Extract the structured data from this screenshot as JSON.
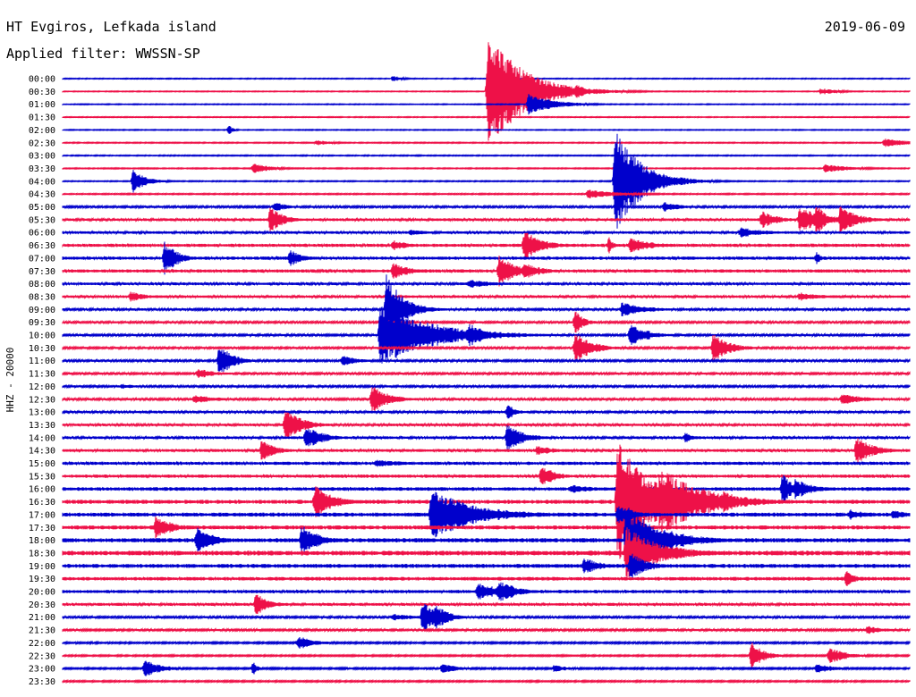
{
  "header": {
    "title": "HT Evgiros, Lefkada island",
    "filter": "Applied filter: WWSSN-SP",
    "date": "2019-06-09"
  },
  "chart_data": {
    "type": "line",
    "title": "HT Evgiros, Lefkada island",
    "ylabel": "HHZ - 20000",
    "colors": [
      "#0000cc",
      "#ee1148"
    ],
    "row_labels": [
      "00:00",
      "00:30",
      "01:00",
      "01:30",
      "02:00",
      "02:30",
      "03:00",
      "03:30",
      "04:00",
      "04:30",
      "05:00",
      "05:30",
      "06:00",
      "06:30",
      "07:00",
      "07:30",
      "08:00",
      "08:30",
      "09:00",
      "09:30",
      "10:00",
      "10:30",
      "11:00",
      "11:30",
      "12:00",
      "12:30",
      "13:00",
      "13:30",
      "14:00",
      "14:30",
      "15:00",
      "15:30",
      "16:00",
      "16:30",
      "17:00",
      "17:30",
      "18:00",
      "18:30",
      "19:00",
      "19:30",
      "20:00",
      "20:30",
      "21:00",
      "21:30",
      "22:00",
      "22:30",
      "23:00",
      "23:30"
    ],
    "background_noise": [
      0.5,
      0.5,
      0.5,
      0.5,
      0.5,
      0.6,
      0.6,
      0.6,
      0.6,
      0.7,
      1.2,
      1.5,
      1.5,
      1.8,
      1.8,
      1.8,
      1.5,
      1.5,
      1.3,
      1.2,
      1.2,
      1.2,
      1.2,
      1.2,
      1.2,
      1.3,
      1.4,
      1.4,
      1.5,
      1.6,
      1.8,
      1.8,
      2.0,
      2.2,
      2.2,
      2.2,
      2.4,
      2.6,
      2.2,
      2.0,
      1.8,
      1.6,
      1.2,
      1.2,
      1.0,
      0.9,
      1.0,
      0.9
    ],
    "events": [
      {
        "row": 0,
        "x": 0.39,
        "amp": 4,
        "dur": 0.01
      },
      {
        "row": 1,
        "x": 0.502,
        "amp": 70,
        "dur": 0.04
      },
      {
        "row": 1,
        "x": 0.607,
        "amp": 10,
        "dur": 0.01
      },
      {
        "row": 1,
        "x": 0.895,
        "amp": 4,
        "dur": 0.02
      },
      {
        "row": 2,
        "x": 0.55,
        "amp": 12,
        "dur": 0.03
      },
      {
        "row": 4,
        "x": 0.196,
        "amp": 6,
        "dur": 0.005
      },
      {
        "row": 5,
        "x": 0.97,
        "amp": 5,
        "dur": 0.03
      },
      {
        "row": 5,
        "x": 0.3,
        "amp": 3,
        "dur": 0.02
      },
      {
        "row": 7,
        "x": 0.225,
        "amp": 6,
        "dur": 0.02
      },
      {
        "row": 7,
        "x": 0.9,
        "amp": 5,
        "dur": 0.03
      },
      {
        "row": 8,
        "x": 0.083,
        "amp": 14,
        "dur": 0.015
      },
      {
        "row": 8,
        "x": 0.652,
        "amp": 60,
        "dur": 0.03
      },
      {
        "row": 8,
        "x": 0.68,
        "amp": 12,
        "dur": 0.02
      },
      {
        "row": 9,
        "x": 0.62,
        "amp": 5,
        "dur": 0.04
      },
      {
        "row": 10,
        "x": 0.25,
        "amp": 6,
        "dur": 0.015
      },
      {
        "row": 10,
        "x": 0.71,
        "amp": 6,
        "dur": 0.02
      },
      {
        "row": 11,
        "x": 0.245,
        "amp": 16,
        "dur": 0.015
      },
      {
        "row": 11,
        "x": 0.825,
        "amp": 10,
        "dur": 0.02
      },
      {
        "row": 11,
        "x": 0.87,
        "amp": 14,
        "dur": 0.03
      },
      {
        "row": 11,
        "x": 0.89,
        "amp": 20,
        "dur": 0.01
      },
      {
        "row": 11,
        "x": 0.918,
        "amp": 16,
        "dur": 0.02
      },
      {
        "row": 12,
        "x": 0.8,
        "amp": 6,
        "dur": 0.03
      },
      {
        "row": 12,
        "x": 0.41,
        "amp": 4,
        "dur": 0.02
      },
      {
        "row": 13,
        "x": 0.545,
        "amp": 18,
        "dur": 0.02
      },
      {
        "row": 13,
        "x": 0.645,
        "amp": 10,
        "dur": 0.005
      },
      {
        "row": 13,
        "x": 0.67,
        "amp": 8,
        "dur": 0.03
      },
      {
        "row": 13,
        "x": 0.39,
        "amp": 6,
        "dur": 0.02
      },
      {
        "row": 14,
        "x": 0.12,
        "amp": 20,
        "dur": 0.015
      },
      {
        "row": 14,
        "x": 0.268,
        "amp": 10,
        "dur": 0.015
      },
      {
        "row": 14,
        "x": 0.89,
        "amp": 8,
        "dur": 0.005
      },
      {
        "row": 15,
        "x": 0.515,
        "amp": 18,
        "dur": 0.02
      },
      {
        "row": 15,
        "x": 0.545,
        "amp": 10,
        "dur": 0.02
      },
      {
        "row": 15,
        "x": 0.39,
        "amp": 10,
        "dur": 0.02
      },
      {
        "row": 16,
        "x": 0.48,
        "amp": 5,
        "dur": 0.03
      },
      {
        "row": 17,
        "x": 0.08,
        "amp": 6,
        "dur": 0.02
      },
      {
        "row": 17,
        "x": 0.87,
        "amp": 5,
        "dur": 0.03
      },
      {
        "row": 18,
        "x": 0.382,
        "amp": 40,
        "dur": 0.02
      },
      {
        "row": 18,
        "x": 0.66,
        "amp": 8,
        "dur": 0.03
      },
      {
        "row": 19,
        "x": 0.605,
        "amp": 14,
        "dur": 0.01
      },
      {
        "row": 20,
        "x": 0.375,
        "amp": 36,
        "dur": 0.06
      },
      {
        "row": 20,
        "x": 0.48,
        "amp": 14,
        "dur": 0.02
      },
      {
        "row": 20,
        "x": 0.67,
        "amp": 14,
        "dur": 0.02
      },
      {
        "row": 21,
        "x": 0.605,
        "amp": 18,
        "dur": 0.02
      },
      {
        "row": 21,
        "x": 0.768,
        "amp": 16,
        "dur": 0.02
      },
      {
        "row": 22,
        "x": 0.185,
        "amp": 20,
        "dur": 0.015
      },
      {
        "row": 22,
        "x": 0.33,
        "amp": 6,
        "dur": 0.02
      },
      {
        "row": 23,
        "x": 0.16,
        "amp": 6,
        "dur": 0.02
      },
      {
        "row": 24,
        "x": 0.07,
        "amp": 3,
        "dur": 0.02
      },
      {
        "row": 25,
        "x": 0.365,
        "amp": 16,
        "dur": 0.02
      },
      {
        "row": 25,
        "x": 0.155,
        "amp": 5,
        "dur": 0.03
      },
      {
        "row": 25,
        "x": 0.92,
        "amp": 6,
        "dur": 0.03
      },
      {
        "row": 26,
        "x": 0.525,
        "amp": 10,
        "dur": 0.01
      },
      {
        "row": 27,
        "x": 0.263,
        "amp": 18,
        "dur": 0.02
      },
      {
        "row": 28,
        "x": 0.287,
        "amp": 14,
        "dur": 0.02
      },
      {
        "row": 28,
        "x": 0.525,
        "amp": 16,
        "dur": 0.02
      },
      {
        "row": 28,
        "x": 0.735,
        "amp": 6,
        "dur": 0.01
      },
      {
        "row": 29,
        "x": 0.235,
        "amp": 14,
        "dur": 0.015
      },
      {
        "row": 29,
        "x": 0.56,
        "amp": 6,
        "dur": 0.02
      },
      {
        "row": 29,
        "x": 0.937,
        "amp": 16,
        "dur": 0.02
      },
      {
        "row": 30,
        "x": 0.37,
        "amp": 4,
        "dur": 0.04
      },
      {
        "row": 31,
        "x": 0.565,
        "amp": 14,
        "dur": 0.015
      },
      {
        "row": 32,
        "x": 0.6,
        "amp": 5,
        "dur": 0.03
      },
      {
        "row": 32,
        "x": 0.85,
        "amp": 20,
        "dur": 0.01
      },
      {
        "row": 32,
        "x": 0.865,
        "amp": 12,
        "dur": 0.02
      },
      {
        "row": 33,
        "x": 0.298,
        "amp": 22,
        "dur": 0.02
      },
      {
        "row": 33,
        "x": 0.655,
        "amp": 70,
        "dur": 0.04
      },
      {
        "row": 33,
        "x": 0.705,
        "amp": 40,
        "dur": 0.05
      },
      {
        "row": 33,
        "x": 0.78,
        "amp": 14,
        "dur": 0.02
      },
      {
        "row": 34,
        "x": 0.435,
        "amp": 30,
        "dur": 0.05
      },
      {
        "row": 34,
        "x": 0.48,
        "amp": 6,
        "dur": 0.02
      },
      {
        "row": 34,
        "x": 0.655,
        "amp": 12,
        "dur": 0.02
      },
      {
        "row": 34,
        "x": 0.93,
        "amp": 6,
        "dur": 0.02
      },
      {
        "row": 34,
        "x": 0.98,
        "amp": 6,
        "dur": 0.02
      },
      {
        "row": 35,
        "x": 0.11,
        "amp": 14,
        "dur": 0.02
      },
      {
        "row": 36,
        "x": 0.158,
        "amp": 16,
        "dur": 0.02
      },
      {
        "row": 36,
        "x": 0.282,
        "amp": 18,
        "dur": 0.02
      },
      {
        "row": 36,
        "x": 0.665,
        "amp": 40,
        "dur": 0.04
      },
      {
        "row": 36,
        "x": 0.7,
        "amp": 12,
        "dur": 0.02
      },
      {
        "row": 37,
        "x": 0.665,
        "amp": 30,
        "dur": 0.04
      },
      {
        "row": 37,
        "x": 0.725,
        "amp": 8,
        "dur": 0.02
      },
      {
        "row": 38,
        "x": 0.615,
        "amp": 10,
        "dur": 0.02
      },
      {
        "row": 38,
        "x": 0.67,
        "amp": 16,
        "dur": 0.02
      },
      {
        "row": 39,
        "x": 0.925,
        "amp": 10,
        "dur": 0.01
      },
      {
        "row": 40,
        "x": 0.49,
        "amp": 10,
        "dur": 0.03
      },
      {
        "row": 40,
        "x": 0.515,
        "amp": 14,
        "dur": 0.02
      },
      {
        "row": 41,
        "x": 0.228,
        "amp": 14,
        "dur": 0.015
      },
      {
        "row": 42,
        "x": 0.425,
        "amp": 22,
        "dur": 0.015
      },
      {
        "row": 42,
        "x": 0.44,
        "amp": 16,
        "dur": 0.015
      },
      {
        "row": 42,
        "x": 0.39,
        "amp": 4,
        "dur": 0.03
      },
      {
        "row": 43,
        "x": 0.95,
        "amp": 5,
        "dur": 0.02
      },
      {
        "row": 44,
        "x": 0.278,
        "amp": 8,
        "dur": 0.02
      },
      {
        "row": 45,
        "x": 0.813,
        "amp": 16,
        "dur": 0.015
      },
      {
        "row": 45,
        "x": 0.905,
        "amp": 10,
        "dur": 0.02
      },
      {
        "row": 46,
        "x": 0.097,
        "amp": 10,
        "dur": 0.02
      },
      {
        "row": 46,
        "x": 0.225,
        "amp": 8,
        "dur": 0.005
      },
      {
        "row": 46,
        "x": 0.448,
        "amp": 6,
        "dur": 0.02
      },
      {
        "row": 46,
        "x": 0.58,
        "amp": 4,
        "dur": 0.02
      },
      {
        "row": 46,
        "x": 0.89,
        "amp": 6,
        "dur": 0.02
      }
    ]
  }
}
